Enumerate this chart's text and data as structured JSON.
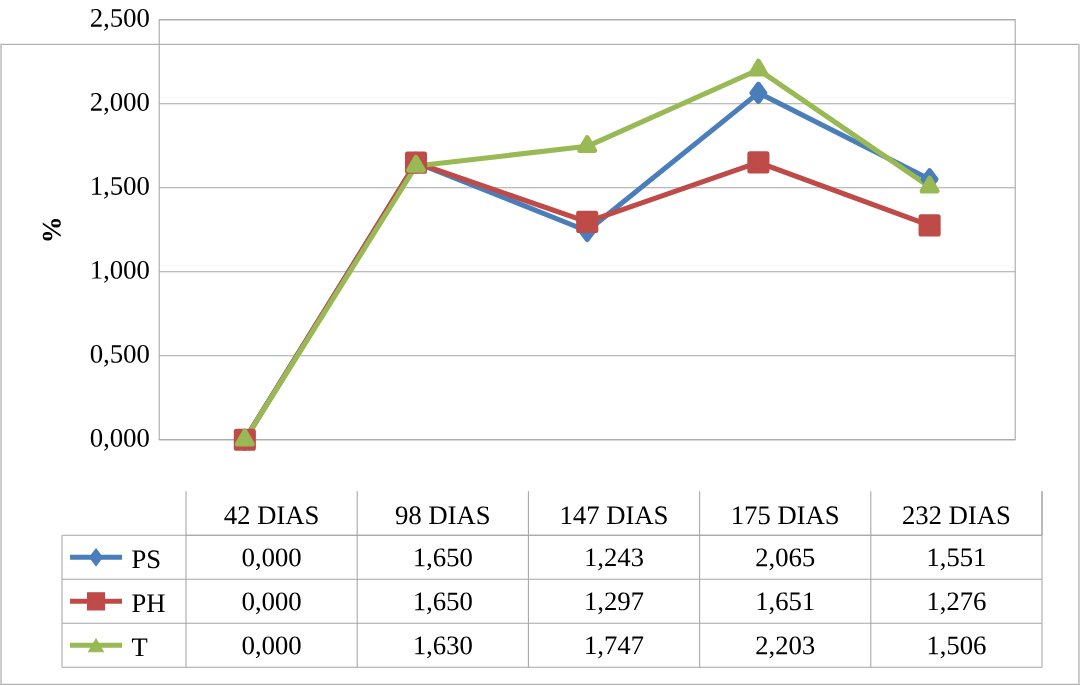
{
  "chart_data": {
    "type": "line",
    "ylabel": "%",
    "categories": [
      "42 DIAS",
      "98 DIAS",
      "147 DIAS",
      "175 DIAS",
      "232 DIAS"
    ],
    "series": [
      {
        "name": "PS",
        "color": "#4a7ebb",
        "marker": "diamond",
        "values": [
          0.0,
          1.65,
          1.243,
          2.065,
          1.551
        ],
        "value_labels": [
          "0,000",
          "1,650",
          "1,243",
          "2,065",
          "1,551"
        ]
      },
      {
        "name": "PH",
        "color": "#be4b48",
        "marker": "square",
        "values": [
          0.0,
          1.65,
          1.297,
          1.651,
          1.276
        ],
        "value_labels": [
          "0,000",
          "1,650",
          "1,297",
          "1,651",
          "1,276"
        ]
      },
      {
        "name": "T",
        "color": "#98b954",
        "marker": "triangle",
        "values": [
          0.0,
          1.63,
          1.747,
          2.203,
          1.506
        ],
        "value_labels": [
          "0,000",
          "1,630",
          "1,747",
          "2,203",
          "1,506"
        ]
      }
    ],
    "ylim": [
      0,
      2.5
    ],
    "yticks": [
      {
        "value": 0,
        "label": "0,000"
      },
      {
        "value": 0.5,
        "label": "0,500"
      },
      {
        "value": 1,
        "label": "1,000"
      },
      {
        "value": 1.5,
        "label": "1,500"
      },
      {
        "value": 2,
        "label": "2,000"
      },
      {
        "value": 2.5,
        "label": "2,500"
      }
    ],
    "grid": "y",
    "legend": "bottom"
  }
}
